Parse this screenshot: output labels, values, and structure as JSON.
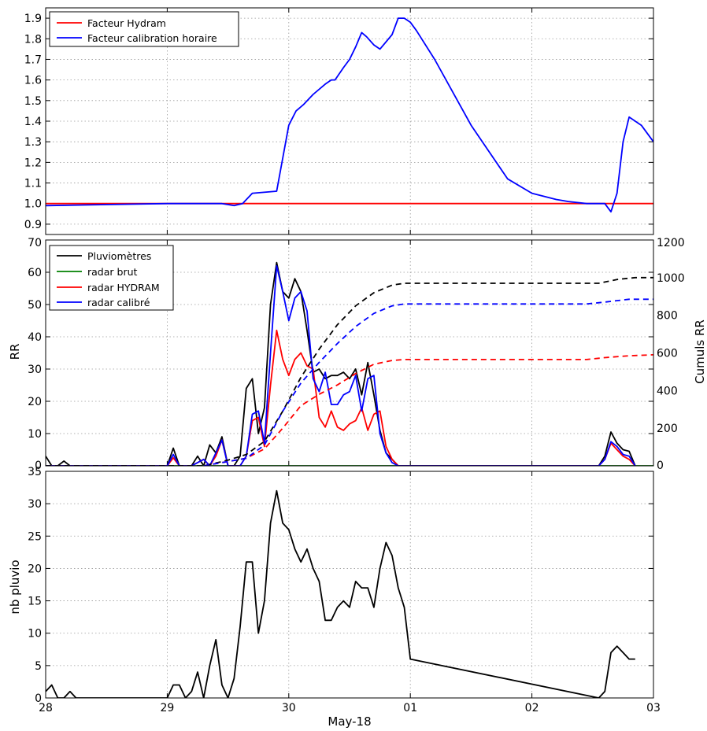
{
  "chart_data": [
    {
      "type": "line",
      "panel": "top",
      "ylim": [
        0.85,
        1.95
      ],
      "yticks": [
        "0.9",
        "1.0",
        "1.1",
        "1.2",
        "1.3",
        "1.4",
        "1.5",
        "1.6",
        "1.7",
        "1.8",
        "1.9"
      ],
      "grid": true,
      "legend": "top-left",
      "series": [
        {
          "name": "Facteur Hydram",
          "color": "#ff0000",
          "x": [
            0,
            5
          ],
          "y": [
            1.0,
            1.0
          ]
        },
        {
          "name": "Facteur calibration horaire",
          "color": "#0000ff",
          "x": [
            0,
            1.0,
            1.45,
            1.55,
            1.62,
            1.7,
            1.9,
            2.0,
            2.06,
            2.12,
            2.2,
            2.3,
            2.35,
            2.38,
            2.45,
            2.5,
            2.55,
            2.6,
            2.64,
            2.7,
            2.75,
            2.85,
            2.9,
            2.95,
            3.0,
            3.05,
            3.2,
            3.5,
            3.8,
            4.0,
            4.2,
            4.3,
            4.45,
            4.6,
            4.65,
            4.7,
            4.75,
            4.8,
            4.9,
            5.0
          ],
          "y": [
            0.99,
            1.0,
            1.0,
            0.99,
            1.0,
            1.05,
            1.06,
            1.38,
            1.45,
            1.48,
            1.53,
            1.58,
            1.6,
            1.6,
            1.66,
            1.7,
            1.76,
            1.83,
            1.81,
            1.77,
            1.75,
            1.82,
            1.9,
            1.9,
            1.88,
            1.84,
            1.7,
            1.38,
            1.12,
            1.05,
            1.02,
            1.01,
            1.0,
            1.0,
            0.96,
            1.05,
            1.3,
            1.42,
            1.38,
            1.3
          ]
        }
      ]
    },
    {
      "type": "line",
      "panel": "middle",
      "ylabel": "RR",
      "ylabel_right": "Cumuls RR",
      "ylim": [
        0,
        70
      ],
      "yticks": [
        "0",
        "10",
        "20",
        "30",
        "40",
        "50",
        "60",
        "70"
      ],
      "ylim_right": [
        0,
        1200
      ],
      "yticks_right": [
        "0",
        "200",
        "400",
        "600",
        "800",
        "1000",
        "1200"
      ],
      "grid": true,
      "legend": "top-left",
      "series": [
        {
          "name": "Pluviomètres",
          "color": "#000000",
          "x": [
            0,
            0.05,
            0.1,
            0.15,
            0.2,
            0.25,
            0.3,
            0.5,
            1.0,
            1.05,
            1.1,
            1.15,
            1.2,
            1.25,
            1.3,
            1.35,
            1.4,
            1.45,
            1.5,
            1.55,
            1.6,
            1.65,
            1.7,
            1.75,
            1.8,
            1.85,
            1.9,
            1.95,
            2.0,
            2.05,
            2.1,
            2.15,
            2.2,
            2.25,
            2.3,
            2.35,
            2.4,
            2.45,
            2.5,
            2.55,
            2.6,
            2.65,
            2.7,
            2.75,
            2.8,
            2.85,
            2.9,
            2.95,
            3.0,
            4.55,
            4.6,
            4.65,
            4.7,
            4.75,
            4.8,
            4.85
          ],
          "y": [
            3,
            0,
            0,
            1.5,
            0,
            0,
            0,
            0,
            0,
            5.5,
            0,
            0,
            0,
            3,
            0,
            6.5,
            4,
            9,
            0,
            0,
            3,
            24,
            27,
            10,
            18,
            50,
            63,
            54,
            52,
            58,
            54,
            42,
            29,
            30,
            27,
            28,
            28,
            29,
            27,
            30,
            22,
            32,
            22,
            11,
            4,
            2,
            0,
            0,
            0,
            0,
            3,
            10.5,
            7,
            5,
            4.5,
            0
          ]
        },
        {
          "name": "radar brut",
          "color": "#008000",
          "x": [
            0,
            5
          ],
          "y": [
            0,
            0
          ]
        },
        {
          "name": "radar HYDRAM",
          "color": "#ff0000",
          "x": [
            0,
            0.5,
            1.0,
            1.05,
            1.1,
            1.2,
            1.3,
            1.35,
            1.4,
            1.45,
            1.5,
            1.6,
            1.65,
            1.7,
            1.75,
            1.8,
            1.85,
            1.9,
            1.95,
            2.0,
            2.05,
            2.1,
            2.15,
            2.2,
            2.25,
            2.3,
            2.35,
            2.4,
            2.45,
            2.5,
            2.55,
            2.6,
            2.65,
            2.7,
            2.75,
            2.8,
            2.85,
            2.9,
            4.55,
            4.6,
            4.65,
            4.7,
            4.75,
            4.8,
            4.85
          ],
          "y": [
            0,
            0,
            0,
            2.5,
            0,
            0,
            2,
            0,
            3,
            8,
            0,
            0,
            3,
            14,
            15,
            6,
            25,
            42,
            33,
            28,
            33,
            35,
            31,
            30,
            15,
            12,
            17,
            12,
            11,
            13,
            14,
            18,
            11,
            16,
            17,
            6,
            2,
            0,
            0,
            2,
            7,
            5,
            3,
            2,
            0
          ]
        },
        {
          "name": "radar calibré",
          "color": "#0000ff",
          "x": [
            0,
            0.5,
            1.0,
            1.05,
            1.1,
            1.2,
            1.3,
            1.35,
            1.4,
            1.45,
            1.5,
            1.6,
            1.65,
            1.7,
            1.75,
            1.8,
            1.85,
            1.9,
            1.95,
            2.0,
            2.05,
            2.1,
            2.15,
            2.2,
            2.25,
            2.3,
            2.35,
            2.4,
            2.45,
            2.5,
            2.55,
            2.6,
            2.65,
            2.7,
            2.75,
            2.8,
            2.85,
            2.9,
            4.55,
            4.6,
            4.65,
            4.7,
            4.75,
            4.8,
            4.85
          ],
          "y": [
            0,
            0,
            0,
            3.5,
            0,
            0,
            2,
            0,
            4,
            8,
            0,
            0,
            3,
            16,
            17,
            7,
            35,
            62,
            54,
            45,
            52,
            54,
            48,
            27,
            23,
            29,
            19,
            19,
            22,
            23,
            28,
            17,
            27,
            28,
            10,
            4,
            1,
            0,
            0,
            2,
            7.5,
            6,
            3.5,
            3,
            0
          ]
        },
        {
          "name": "cumul Pluviomètres",
          "color": "#000000",
          "axis": "right",
          "style": "dashed",
          "x": [
            0,
            1.3,
            1.5,
            1.65,
            1.8,
            1.95,
            2.1,
            2.25,
            2.4,
            2.55,
            2.7,
            2.85,
            2.95,
            3.2,
            4.45,
            4.55,
            4.7,
            4.85,
            5.0
          ],
          "y": [
            0,
            0,
            30,
            60,
            130,
            290,
            470,
            620,
            750,
            850,
            920,
            960,
            970,
            970,
            970,
            970,
            990,
            1000,
            1000
          ]
        },
        {
          "name": "cumul radar HYDRAM",
          "color": "#ff0000",
          "axis": "right",
          "style": "dashed",
          "x": [
            1.3,
            1.65,
            1.8,
            1.95,
            2.1,
            2.25,
            2.4,
            2.55,
            2.7,
            2.85,
            2.95,
            4.45,
            4.6,
            4.8,
            5.0
          ],
          "y": [
            0,
            40,
            90,
            200,
            320,
            380,
            430,
            490,
            540,
            560,
            565,
            565,
            575,
            585,
            590
          ]
        },
        {
          "name": "cumul radar calibré",
          "color": "#0000ff",
          "axis": "right",
          "style": "dashed",
          "x": [
            1.3,
            1.65,
            1.8,
            1.95,
            2.1,
            2.25,
            2.4,
            2.55,
            2.7,
            2.85,
            2.95,
            4.45,
            4.6,
            4.8,
            5.0
          ],
          "y": [
            0,
            40,
            110,
            290,
            440,
            550,
            650,
            740,
            810,
            850,
            860,
            860,
            870,
            885,
            885
          ]
        }
      ]
    },
    {
      "type": "line",
      "panel": "bottom",
      "ylabel": "nb pluvio",
      "ylim": [
        0,
        35
      ],
      "yticks": [
        "0",
        "5",
        "10",
        "15",
        "20",
        "25",
        "30",
        "35"
      ],
      "grid": true,
      "xlabel": "May-18",
      "xticks": [
        "28",
        "29",
        "30",
        "01",
        "02",
        "03"
      ],
      "series": [
        {
          "name": "nb pluvio",
          "color": "#000000",
          "x": [
            0,
            0.05,
            0.1,
            0.15,
            0.2,
            0.25,
            0.3,
            1.0,
            1.05,
            1.1,
            1.15,
            1.2,
            1.25,
            1.3,
            1.35,
            1.4,
            1.45,
            1.5,
            1.55,
            1.6,
            1.65,
            1.7,
            1.75,
            1.8,
            1.85,
            1.9,
            1.95,
            2.0,
            2.05,
            2.1,
            2.15,
            2.2,
            2.25,
            2.3,
            2.35,
            2.4,
            2.45,
            2.5,
            2.55,
            2.6,
            2.65,
            2.7,
            2.75,
            2.8,
            2.85,
            2.9,
            2.95,
            3.0,
            4.55,
            4.6,
            4.65,
            4.7,
            4.75,
            4.8,
            4.85
          ],
          "y": [
            1,
            2,
            0,
            0,
            1,
            0,
            0,
            0,
            2,
            2,
            0,
            1,
            4,
            0,
            5,
            9,
            2,
            0,
            3,
            11,
            21,
            21,
            10,
            15,
            27,
            32,
            27,
            26,
            23,
            21,
            23,
            20,
            18,
            12,
            12,
            14,
            15,
            14,
            18,
            17,
            17,
            14,
            20,
            24,
            22,
            17,
            14,
            6,
            0,
            1,
            7,
            8,
            7,
            6,
            6
          ]
        }
      ]
    }
  ],
  "legends": {
    "top": [
      "Facteur Hydram",
      "Facteur calibration horaire"
    ],
    "middle": [
      "Pluviomètres",
      "radar brut",
      "radar HYDRAM",
      "radar calibré"
    ]
  },
  "labels": {
    "middle_ylabel": "RR",
    "middle_ylabel_right": "Cumuls RR",
    "bottom_ylabel": "nb pluvio",
    "xlabel": "May-18"
  }
}
